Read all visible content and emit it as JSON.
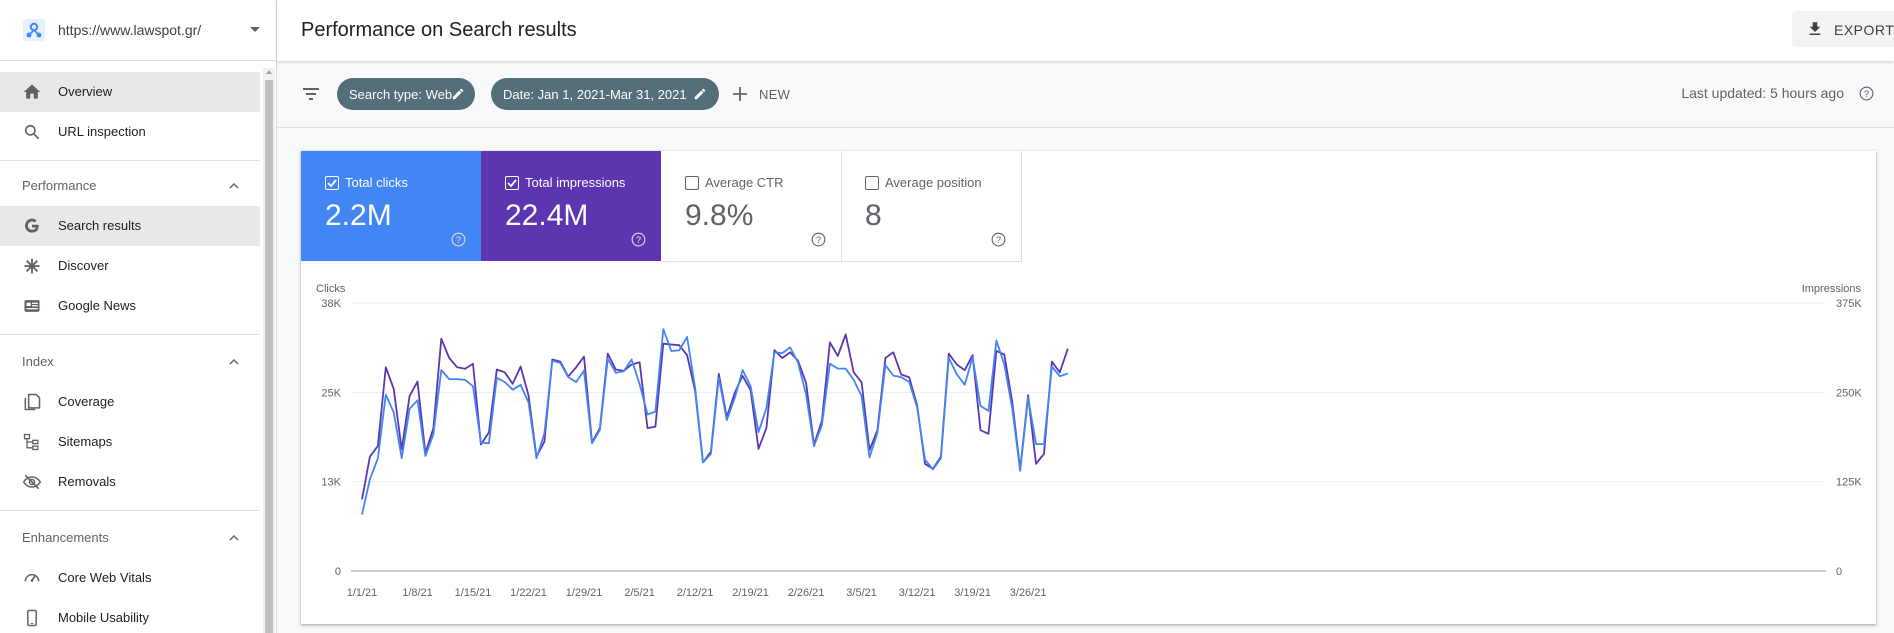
{
  "property": {
    "url": "https://www.lawspot.gr/"
  },
  "sidebar": {
    "overview": "Overview",
    "url_inspection": "URL inspection",
    "sections": {
      "performance": "Performance",
      "index": "Index",
      "enhancements": "Enhancements"
    },
    "performance_items": [
      "Search results",
      "Discover",
      "Google News"
    ],
    "index_items": [
      "Coverage",
      "Sitemaps",
      "Removals"
    ],
    "enhancement_items": [
      "Core Web Vitals",
      "Mobile Usability"
    ]
  },
  "header": {
    "title": "Performance on Search results",
    "export_label": "EXPORT"
  },
  "filters": {
    "chips": [
      "Search type: Web",
      "Date: Jan 1, 2021-Mar 31, 2021"
    ],
    "new_label": "NEW",
    "last_updated": "Last updated: 5 hours ago"
  },
  "metrics": [
    {
      "label": "Total clicks",
      "value": "2.2M",
      "checked": true,
      "color": "#4285f4"
    },
    {
      "label": "Total impressions",
      "value": "22.4M",
      "checked": true,
      "color": "#5e35b1"
    },
    {
      "label": "Average CTR",
      "value": "9.8%",
      "checked": false,
      "color": "#ffffff"
    },
    {
      "label": "Average position",
      "value": "8",
      "checked": false,
      "color": "#ffffff"
    }
  ],
  "chart_data": {
    "type": "line",
    "left_axis_label": "Clicks",
    "right_axis_label": "Impressions",
    "left_ticks": [
      "0",
      "13K",
      "25K",
      "38K"
    ],
    "right_ticks": [
      "0",
      "125K",
      "250K",
      "375K"
    ],
    "left_ylim": [
      0,
      38000
    ],
    "right_ylim": [
      0,
      375000
    ],
    "x_tick_labels": [
      "1/1/21",
      "1/8/21",
      "1/15/21",
      "1/22/21",
      "1/29/21",
      "2/5/21",
      "2/12/21",
      "2/19/21",
      "2/26/21",
      "3/5/21",
      "3/12/21",
      "3/19/21",
      "3/26/21"
    ],
    "grid": true,
    "series": [
      {
        "name": "Total clicks",
        "axis": "left",
        "color": "#4285f4",
        "values": [
          8000,
          13000,
          16000,
          25000,
          22500,
          16000,
          23000,
          24200,
          16300,
          19400,
          28500,
          27200,
          27200,
          27100,
          26200,
          18200,
          18100,
          27400,
          26800,
          25700,
          26400,
          23900,
          16000,
          19500,
          29800,
          29500,
          27500,
          26800,
          28400,
          18100,
          20000,
          30100,
          28100,
          28300,
          30000,
          26500,
          22200,
          22600,
          34300,
          31200,
          31300,
          33200,
          26000,
          15400,
          16600,
          27400,
          21400,
          24500,
          28500,
          26200,
          19700,
          23100,
          31000,
          30900,
          31700,
          29500,
          25000,
          17700,
          20700,
          29400,
          28700,
          28700,
          27100,
          24800,
          16100,
          19600,
          29200,
          27700,
          27500,
          26800,
          23200,
          15800,
          14400,
          16000,
          30200,
          27900,
          26400,
          30300,
          23400,
          22700,
          32700,
          29300,
          23000,
          14200,
          24600,
          18000,
          18000,
          29000,
          27600,
          28000
        ]
      },
      {
        "name": "Total impressions",
        "axis": "right",
        "color": "#5e35b1",
        "values": [
          100000,
          160000,
          175000,
          285000,
          255000,
          170000,
          245000,
          265000,
          165000,
          200000,
          325000,
          298000,
          285000,
          283000,
          290000,
          177000,
          194000,
          282000,
          278000,
          262000,
          286000,
          246000,
          160000,
          181000,
          296000,
          293000,
          272000,
          285000,
          300000,
          180000,
          200000,
          304000,
          282000,
          280000,
          289000,
          292000,
          200000,
          202000,
          318000,
          317000,
          316000,
          302000,
          252000,
          152000,
          167000,
          276000,
          215000,
          249000,
          273000,
          253000,
          171000,
          200000,
          309000,
          298000,
          306000,
          294000,
          263000,
          177000,
          210000,
          320000,
          301000,
          331000,
          278000,
          264000,
          169000,
          197000,
          298000,
          306000,
          275000,
          271000,
          232000,
          150000,
          143000,
          160000,
          304000,
          289000,
          281000,
          302000,
          197000,
          192000,
          308000,
          303000,
          236000,
          142000,
          246000,
          150000,
          164000,
          293000,
          278000,
          311000
        ]
      }
    ]
  }
}
